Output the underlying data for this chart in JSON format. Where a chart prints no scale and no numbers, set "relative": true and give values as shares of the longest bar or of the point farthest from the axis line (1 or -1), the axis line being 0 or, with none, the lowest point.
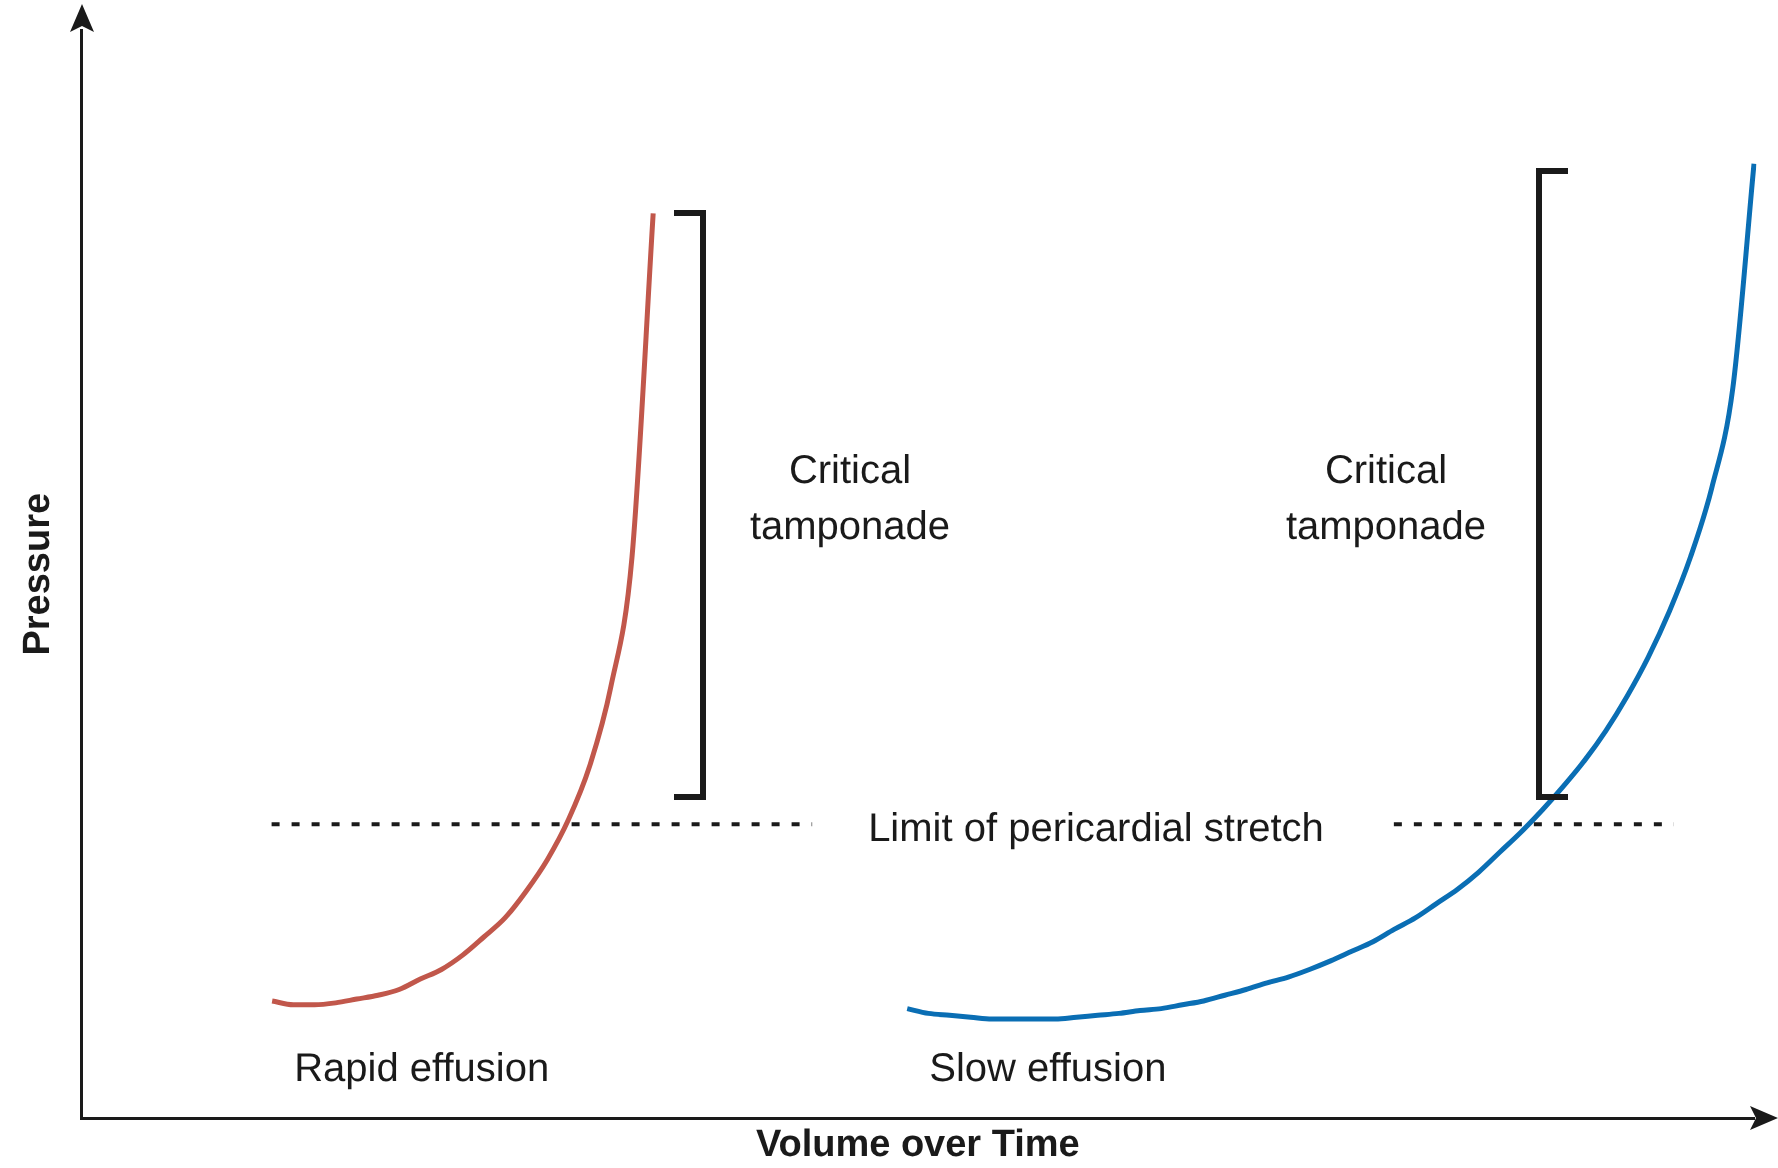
{
  "chart_data": {
    "type": "line",
    "relative": true,
    "xlabel": "Volume over Time",
    "ylabel": "Pressure",
    "categories": [
      null,
      null,
      null,
      null,
      null,
      null,
      null,
      null,
      null,
      null,
      null,
      null,
      null,
      null,
      null,
      null,
      null,
      null,
      null,
      null,
      null,
      null,
      null,
      null,
      null,
      null,
      null,
      null,
      null,
      null,
      null,
      null,
      null,
      null,
      null,
      null,
      null,
      null,
      null,
      null,
      null,
      null,
      null,
      null,
      null,
      null,
      null,
      null,
      null,
      null,
      null,
      null,
      null,
      null,
      null,
      null,
      null,
      null,
      null,
      null,
      null,
      null,
      null,
      null,
      null,
      null,
      null,
      null,
      null,
      null,
      null,
      null,
      null,
      null,
      null,
      null,
      null,
      null,
      null,
      null
    ],
    "series": [
      {
        "name": "Rapid effusion",
        "color": "#c1574b",
        "values": [
          null,
          null,
          null,
          null,
          null,
          null,
          null,
          null,
          null,
          0.123,
          0.119,
          0.119,
          0.121,
          0.125,
          0.129,
          0.135,
          0.146,
          0.156,
          0.171,
          0.19,
          0.21,
          0.238,
          0.271,
          0.313,
          0.369,
          0.452,
          0.588,
          0.948,
          null,
          null,
          null,
          null,
          null,
          null,
          null,
          null,
          null,
          null,
          null,
          null,
          null,
          null,
          null,
          null,
          null,
          null,
          null,
          null,
          null,
          null,
          null,
          null,
          null,
          null,
          null,
          null,
          null,
          null,
          null,
          null,
          null,
          null,
          null,
          null,
          null,
          null,
          null,
          null,
          null,
          null,
          null,
          null,
          null,
          null,
          null,
          null,
          null,
          null,
          null,
          null
        ]
      },
      {
        "name": "Slow effusion",
        "color": "#0a6eb4",
        "values": [
          null,
          null,
          null,
          null,
          null,
          null,
          null,
          null,
          null,
          null,
          null,
          null,
          null,
          null,
          null,
          null,
          null,
          null,
          null,
          null,
          null,
          null,
          null,
          null,
          null,
          null,
          null,
          null,
          null,
          null,
          null,
          null,
          null,
          null,
          null,
          null,
          null,
          null,
          null,
          0.115,
          0.11,
          0.108,
          0.106,
          0.104,
          0.104,
          0.104,
          0.104,
          0.106,
          0.108,
          0.11,
          0.113,
          0.115,
          0.119,
          0.123,
          0.129,
          0.135,
          0.142,
          0.148,
          0.156,
          0.165,
          0.175,
          0.185,
          0.198,
          0.21,
          0.225,
          0.24,
          0.258,
          0.279,
          0.3,
          0.323,
          0.348,
          0.375,
          0.406,
          0.442,
          0.483,
          0.531,
          0.588,
          0.66,
          0.765,
          1
        ]
      }
    ],
    "ref_lines": [
      {
        "axis": "y",
        "value": 0.308,
        "label": "Limit of pericardial stretch",
        "line_style": "dotted",
        "color": "#1a1a1a"
      }
    ],
    "annotations": [
      "Critical tamponade",
      "Critical tamponade"
    ],
    "marker": "none",
    "line_style": "solid",
    "grid": false,
    "legend": false
  }
}
